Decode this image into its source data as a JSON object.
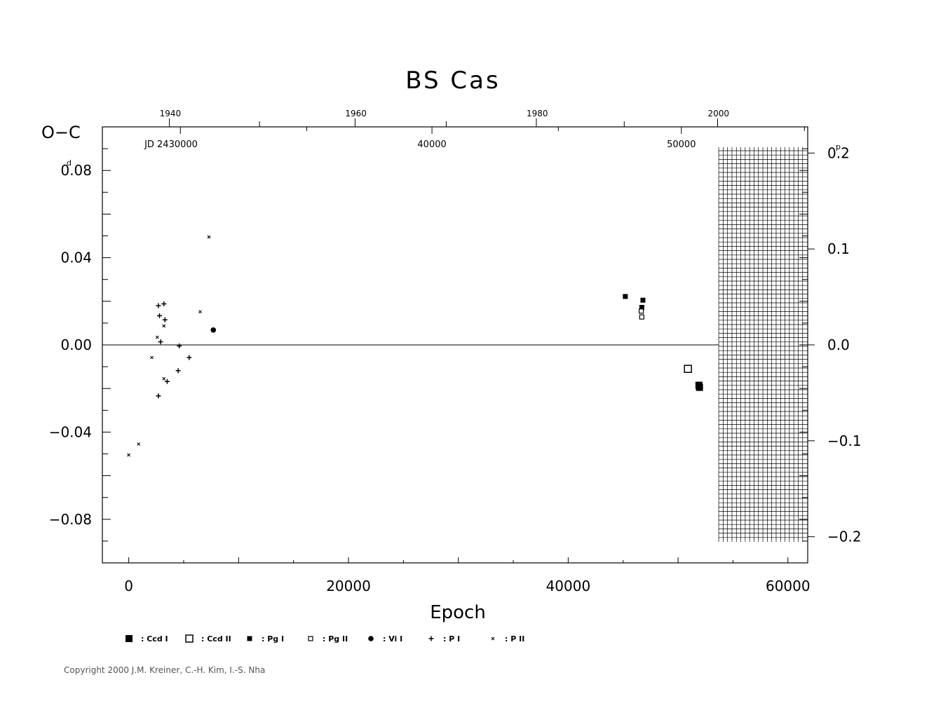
{
  "chart_data": {
    "type": "scatter",
    "title": "BS Cas",
    "xlabel": "Epoch",
    "ylabel": "O−C",
    "y_unit_left": "d",
    "y_unit_right": "p",
    "xlim": [
      -2400,
      61800
    ],
    "ylim": [
      -0.1,
      0.1
    ],
    "x_ticks": [
      0,
      20000,
      40000,
      60000
    ],
    "x_tick_labels": [
      "0",
      "20000",
      "40000",
      "60000"
    ],
    "y_ticks": [
      0.08,
      0.04,
      0.0,
      -0.04,
      -0.08
    ],
    "y_tick_labels": [
      "0.08",
      "0.04",
      "0.00",
      "−0.04",
      "−0.08"
    ],
    "right_axis": {
      "ylim": [
        -0.2273,
        0.2273
      ],
      "ticks": [
        0.2,
        0.1,
        0.0,
        -0.1,
        -0.2
      ],
      "tick_labels": [
        "0.2",
        "0.1",
        "0.0",
        "−0.1",
        "−0.2"
      ]
    },
    "top_axis_years": {
      "labels": [
        "1940",
        "1960",
        "1980",
        "2000"
      ],
      "epochs": [
        3700,
        20600,
        37100,
        53600
      ]
    },
    "top_axis_jd": {
      "labels": [
        "JD 2430000",
        "40000",
        "50000"
      ],
      "epochs": [
        4700,
        27600,
        50300
      ]
    },
    "future_region_start": 53700,
    "series": [
      {
        "name": "Ccd I",
        "marker": "filled-square-large",
        "points": [
          [
            51900,
            -0.0185
          ],
          [
            51950,
            -0.0195
          ]
        ]
      },
      {
        "name": "Ccd II",
        "marker": "open-square-large",
        "points": [
          [
            50900,
            -0.011
          ]
        ]
      },
      {
        "name": "Pg I",
        "marker": "filled-square-small",
        "points": [
          [
            45200,
            0.0222
          ],
          [
            46800,
            0.0205
          ],
          [
            46700,
            0.0172
          ]
        ]
      },
      {
        "name": "Pg II",
        "marker": "open-square-small",
        "points": [
          [
            46650,
            0.0155
          ],
          [
            46700,
            0.0128
          ]
        ]
      },
      {
        "name": "Vi I",
        "marker": "filled-circle",
        "points": [
          [
            7700,
            0.0068
          ]
        ]
      },
      {
        "name": "P I",
        "marker": "plus",
        "points": [
          [
            2700,
            0.018
          ],
          [
            3200,
            0.0188
          ],
          [
            2800,
            0.0134
          ],
          [
            3300,
            0.0115
          ],
          [
            2900,
            0.0014
          ],
          [
            4600,
            -0.0005
          ],
          [
            5500,
            -0.0058
          ],
          [
            4500,
            -0.0118
          ],
          [
            3500,
            -0.0168
          ],
          [
            2700,
            -0.0234
          ]
        ]
      },
      {
        "name": "P II",
        "marker": "cross",
        "points": [
          [
            7300,
            0.0495
          ],
          [
            6500,
            0.0152
          ],
          [
            3200,
            0.0087
          ],
          [
            2600,
            0.0035
          ],
          [
            2100,
            -0.0058
          ],
          [
            3200,
            -0.0155
          ],
          [
            900,
            -0.0455
          ],
          [
            0,
            -0.0505
          ]
        ]
      }
    ]
  },
  "copyright": "Copyright 2000 J.M. Kreiner, C.-H. Kim, I.-S. Nha"
}
